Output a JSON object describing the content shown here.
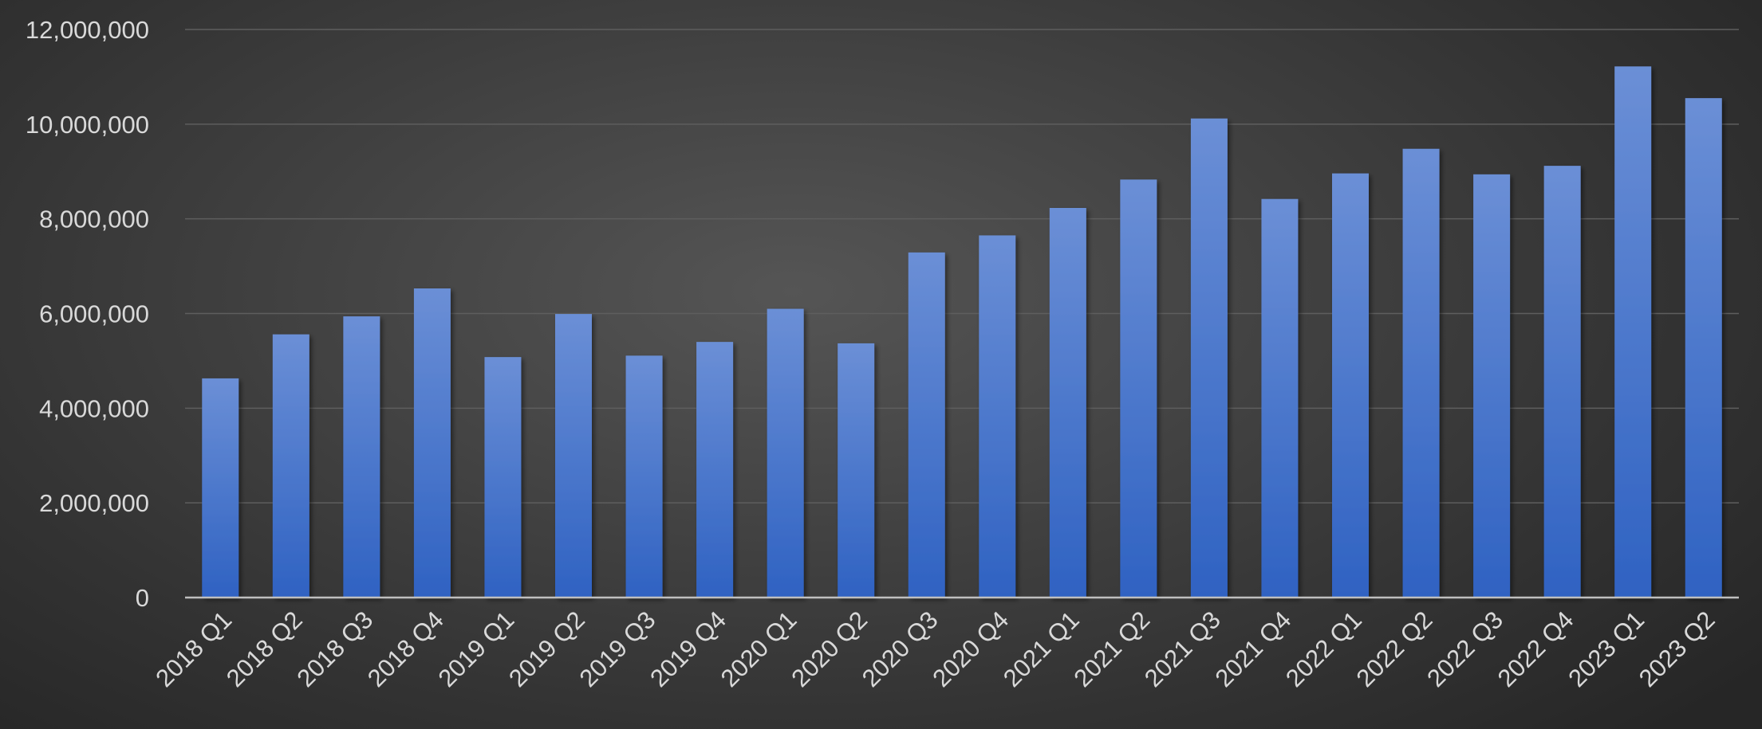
{
  "chart_data": {
    "type": "bar",
    "title": "",
    "xlabel": "",
    "ylabel": "",
    "categories": [
      "2018 Q1",
      "2018 Q2",
      "2018 Q3",
      "2018 Q4",
      "2019 Q1",
      "2019 Q2",
      "2019 Q3",
      "2019 Q4",
      "2020 Q1",
      "2020 Q2",
      "2020 Q3",
      "2020 Q4",
      "2021 Q1",
      "2021 Q2",
      "2021 Q3",
      "2021 Q4",
      "2022 Q1",
      "2022 Q2",
      "2022 Q3",
      "2022 Q4",
      "2023 Q1",
      "2023 Q2"
    ],
    "values": [
      4630000,
      5560000,
      5940000,
      6530000,
      5080000,
      5990000,
      5110000,
      5400000,
      6100000,
      5370000,
      7290000,
      7650000,
      8230000,
      8830000,
      10120000,
      8420000,
      8960000,
      9480000,
      8940000,
      9120000,
      11220000,
      10550000
    ],
    "ylim": [
      0,
      12000000
    ],
    "yticks": [
      0,
      2000000,
      4000000,
      6000000,
      8000000,
      10000000,
      12000000
    ],
    "ytick_labels": [
      "0",
      "2,000,000",
      "4,000,000",
      "6,000,000",
      "8,000,000",
      "10,000,000",
      "12,000,000"
    ],
    "grid": true,
    "legend": "none",
    "colors": {
      "bar_top": "#6b8fd6",
      "bar_bottom": "#2f62c2",
      "gridline": "#5e5e5e",
      "baseline": "#bfbfbf",
      "text": "#d9d9d9"
    }
  }
}
